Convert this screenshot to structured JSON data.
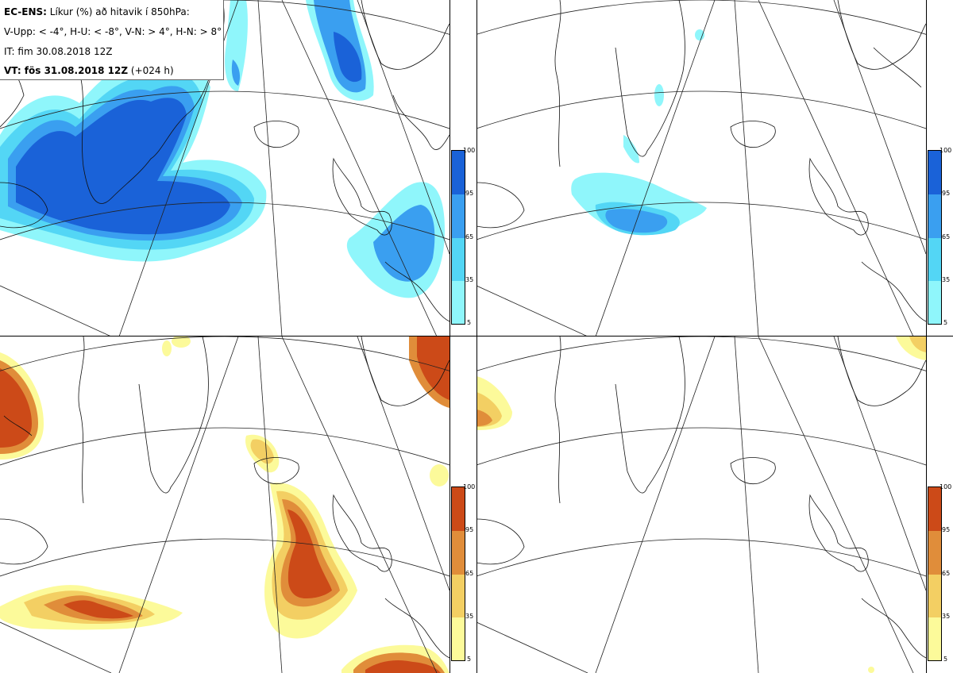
{
  "title": {
    "line1_bold": "EC-ENS:",
    "line1_rest": " Líkur (%) að hitavik í 850hPa:",
    "line2": "V-Upp: < -4°, H-U: < -8°, V-N: > 4°, H-N: > 8°",
    "line3": "IT: fim 30.08.2018 12Z",
    "line4_bold": "VT: fös 31.08.2018 12Z",
    "line4_rest": " (+024 h)"
  },
  "colorbar_ticks": [
    "100",
    "95",
    "65",
    "35",
    "5"
  ],
  "cold_colors": [
    "#8ff6fb",
    "#53d6f5",
    "#3a9ff0",
    "#1a62d8"
  ],
  "warm_colors": [
    "#fcfa9a",
    "#f3cf63",
    "#e08d3a",
    "#cc4a18"
  ],
  "panels": [
    {
      "name": "V-Upp",
      "palette": "cold"
    },
    {
      "name": "H-U",
      "palette": "cold"
    },
    {
      "name": "V-N",
      "palette": "warm"
    },
    {
      "name": "H-N",
      "palette": "warm"
    }
  ]
}
